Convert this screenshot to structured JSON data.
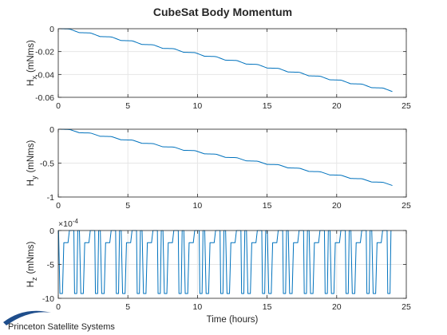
{
  "figure_title": "CubeSat Body Momentum",
  "logo": {
    "text": "Princeton Satellite Systems"
  },
  "colors": {
    "series": "#0072bd",
    "axes": "#262626",
    "grid": "#e6e6e6",
    "logo_swoosh": "#1f4e8c"
  },
  "chart_data": [
    {
      "type": "line",
      "id": "hx",
      "title": "CubeSat Body Momentum",
      "ylabel_main": "H",
      "ylabel_sub": "x",
      "ylabel_unit": "(mNms)",
      "xlabel": "",
      "xlim": [
        0,
        25
      ],
      "ylim": [
        -0.06,
        0
      ],
      "xticks": [
        0,
        5,
        10,
        15,
        20,
        25
      ],
      "xtick_labels": [
        "0",
        "5",
        "10",
        "15",
        "20",
        "25"
      ],
      "yticks": [
        -0.06,
        -0.04,
        -0.02,
        0
      ],
      "ytick_labels": [
        "-0.06",
        "-0.04",
        "-0.02",
        "0"
      ],
      "grid": true,
      "shape": "staircase",
      "x_range": [
        0,
        24
      ],
      "y_start": 0,
      "y_end": -0.055,
      "steps": 16,
      "series": [
        {
          "values_note": "",
          "start": [
            0,
            0
          ],
          "end": [
            24,
            -0.055
          ]
        }
      ]
    },
    {
      "type": "line",
      "id": "hy",
      "ylabel_main": "H",
      "ylabel_sub": "y",
      "ylabel_unit": "(mNms)",
      "xlabel": "",
      "xlim": [
        0,
        25
      ],
      "ylim": [
        -1,
        0
      ],
      "xticks": [
        0,
        5,
        10,
        15,
        20,
        25
      ],
      "xtick_labels": [
        "0",
        "5",
        "10",
        "15",
        "20",
        "25"
      ],
      "yticks": [
        -1,
        -0.5,
        0
      ],
      "ytick_labels": [
        "-1",
        "-0.5",
        "0"
      ],
      "grid": true,
      "shape": "staircase",
      "x_range": [
        0,
        24
      ],
      "y_start": 0,
      "y_end": -0.83,
      "steps": 16,
      "series": [
        {
          "values_note": "",
          "start": [
            0,
            0
          ],
          "end": [
            24,
            -0.83
          ]
        }
      ]
    },
    {
      "type": "line",
      "id": "hz",
      "ylabel_main": "H",
      "ylabel_sub": "z",
      "ylabel_unit": "(mNms)",
      "xlabel": "Time (hours)",
      "xlim": [
        0,
        25
      ],
      "ylim": [
        -10,
        0
      ],
      "y_exponent_label": "×10",
      "y_exponent": "-4",
      "xticks": [
        0,
        5,
        10,
        15,
        20,
        25
      ],
      "xtick_labels": [
        "0",
        "5",
        "10",
        "15",
        "20",
        "25"
      ],
      "yticks": [
        -10,
        -5,
        0
      ],
      "ytick_labels": [
        "-10",
        "-5",
        "0"
      ],
      "grid": true,
      "shape": "pulse_train",
      "x_range": [
        0,
        24
      ],
      "period_hours": 1.5,
      "levels": {
        "top": 0,
        "plateau": -1.8,
        "bottom": -9.3
      },
      "series": [
        {
          "values_note": ""
        }
      ]
    }
  ]
}
